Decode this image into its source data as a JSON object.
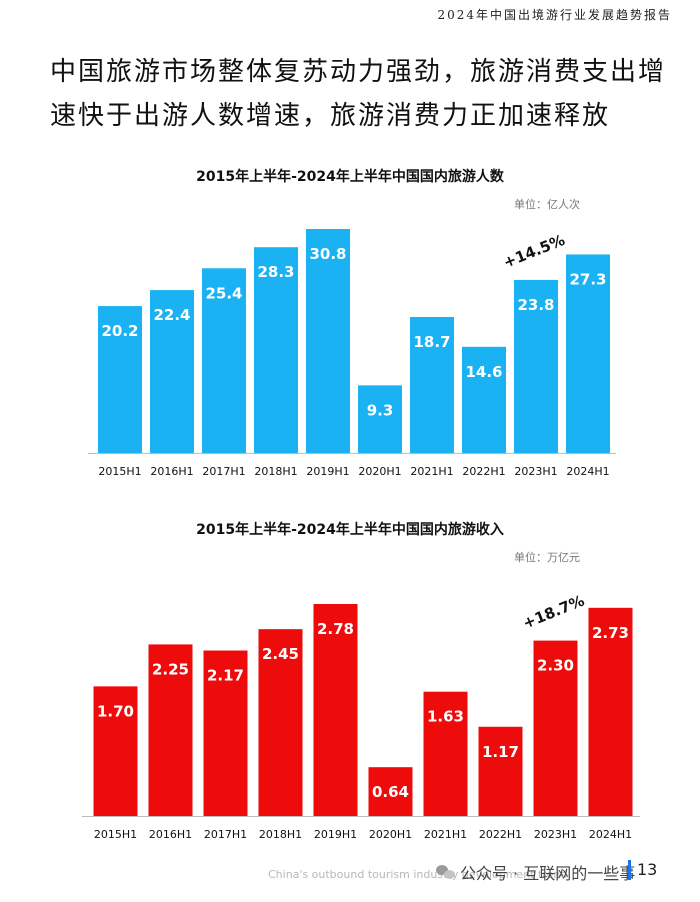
{
  "header": {
    "report_title": "2024年中国出境游行业发展趋势报告"
  },
  "headline": {
    "line1": "中国旅游市场整体复苏动力强劲，旅游消费支出增",
    "line2": "速快于出游人数增速，旅游消费力正加速释放"
  },
  "chart_data": [
    {
      "type": "bar",
      "title": "2015年上半年-2024年上半年中国国内旅游人数",
      "unit": "单位：亿人次",
      "color": "#1ab2f2",
      "categories": [
        "2015H1",
        "2016H1",
        "2017H1",
        "2018H1",
        "2019H1",
        "2020H1",
        "2021H1",
        "2022H1",
        "2023H1",
        "2024H1"
      ],
      "values": [
        20.2,
        22.4,
        25.4,
        28.3,
        30.8,
        9.3,
        18.7,
        14.6,
        23.8,
        27.3
      ],
      "value_labels": [
        "20.2",
        "22.4",
        "25.4",
        "28.3",
        "30.8",
        "9.3",
        "18.7",
        "14.6",
        "23.8",
        "27.3"
      ],
      "annotation": "+14.5%",
      "ylim": [
        0,
        30.8
      ]
    },
    {
      "type": "bar",
      "title": "2015年上半年-2024年上半年中国国内旅游收入",
      "unit": "单位：万亿元",
      "color": "#ee0b0b",
      "categories": [
        "2015H1",
        "2016H1",
        "2017H1",
        "2018H1",
        "2019H1",
        "2020H1",
        "2021H1",
        "2022H1",
        "2023H1",
        "2024H1"
      ],
      "values": [
        1.7,
        2.25,
        2.17,
        2.45,
        2.78,
        0.64,
        1.63,
        1.17,
        2.3,
        2.73
      ],
      "value_labels": [
        "1.70",
        "2.25",
        "2.17",
        "2.45",
        "2.78",
        "0.64",
        "1.63",
        "1.17",
        "2.30",
        "2.73"
      ],
      "annotation": "+18.7%",
      "ylim": [
        0,
        2.78
      ]
    }
  ],
  "footer": {
    "watermark_text": "China's outbound tourism industry development trend",
    "wechat_label": "公众号 · 互联网的一些事",
    "page_number": "13"
  }
}
